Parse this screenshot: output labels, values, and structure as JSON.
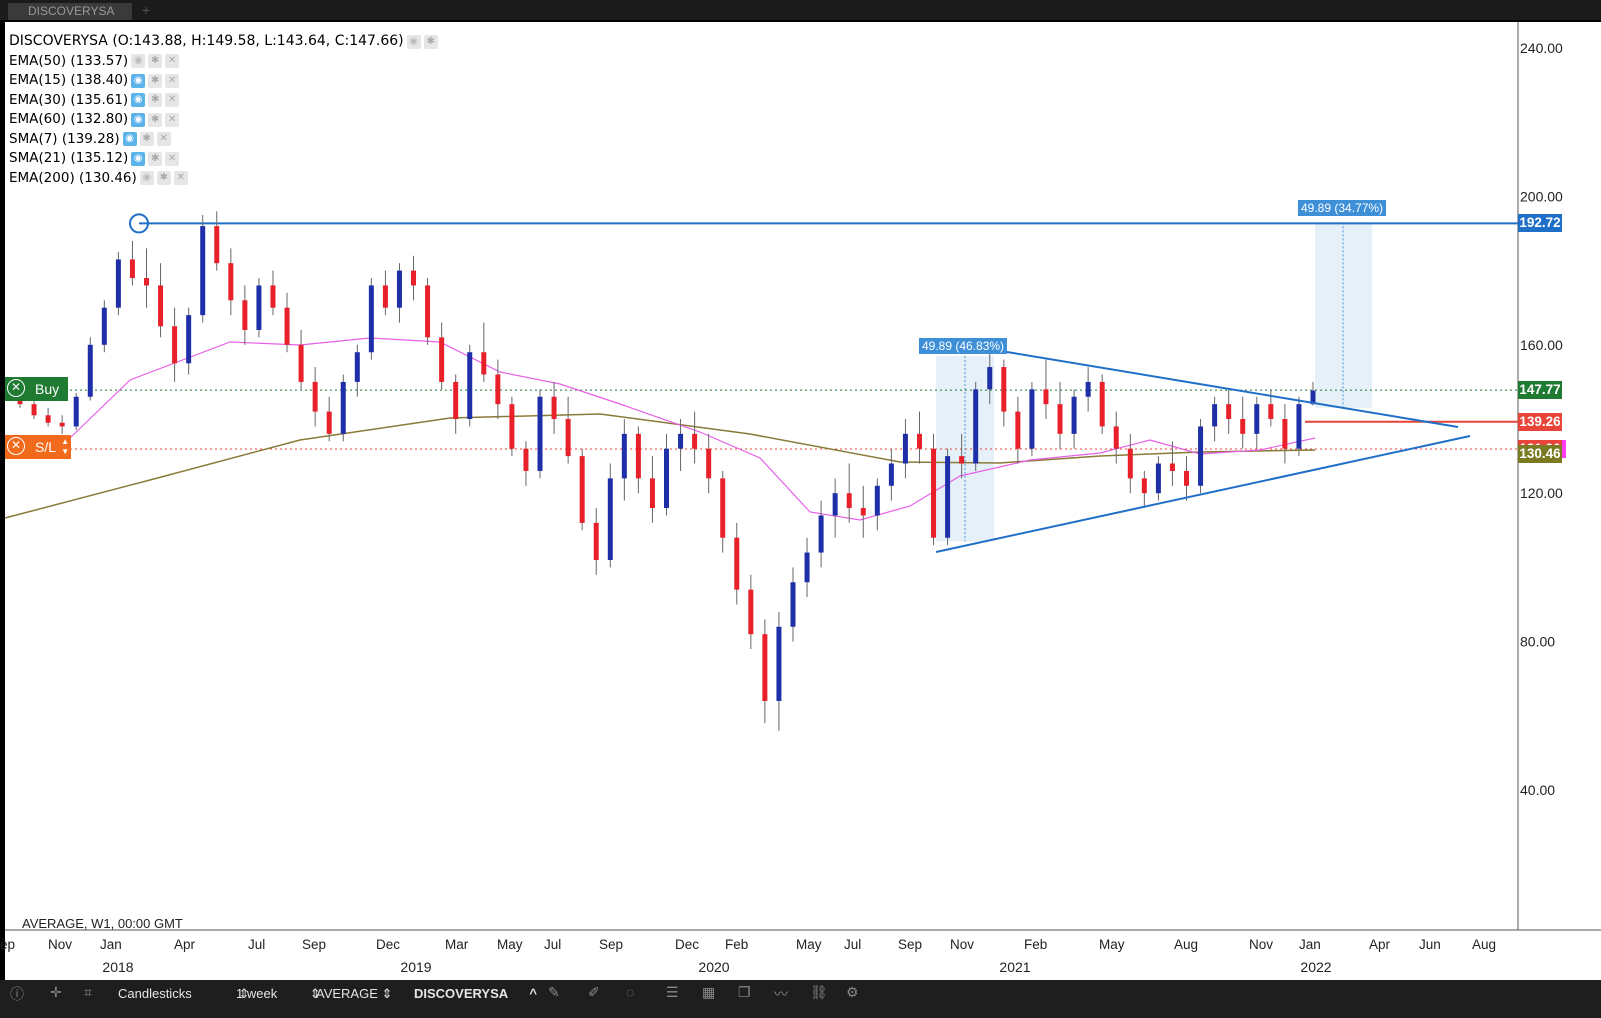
{
  "window": {
    "tab_title": "DISCOVERYSA"
  },
  "legend": {
    "main": "DISCOVERYSA (O:143.88, H:149.58, L:143.64, C:147.66)",
    "indicators": [
      {
        "label": "EMA(50) (133.57)",
        "eye_on": false
      },
      {
        "label": "EMA(15) (138.40)",
        "eye_on": true
      },
      {
        "label": "EMA(30) (135.61)",
        "eye_on": true
      },
      {
        "label": "EMA(60) (132.80)",
        "eye_on": true
      },
      {
        "label": "SMA(7) (139.28)",
        "eye_on": true
      },
      {
        "label": "SMA(21) (135.12)",
        "eye_on": true
      },
      {
        "label": "EMA(200) (130.46)",
        "eye_on": false
      }
    ]
  },
  "orders": {
    "buy_label": "Buy",
    "sl_label": "S/L"
  },
  "footer_note": "AVERAGE, W1, 00:00 GMT",
  "measurements": {
    "first": "49.89 (46.83%)",
    "second": "49.89 (34.77%)"
  },
  "price_tags": [
    {
      "value": "192.72",
      "price": 192.72,
      "color": "#1f6fc8"
    },
    {
      "value": "147.77",
      "price": 147.77,
      "color": "#1f7a32"
    },
    {
      "value": "139.26",
      "price": 139.26,
      "color": "#e8443a"
    },
    {
      "value": "131.90",
      "price": 131.9,
      "color": "#e8443a",
      "accent": "#ff3cf0"
    },
    {
      "value": "130.46",
      "price": 130.46,
      "color": "#7a7a22"
    }
  ],
  "chart_data": {
    "type": "candlestick",
    "y_axis": {
      "ticks": [
        "240.00",
        "200.00",
        "160.00",
        "120.00",
        "80.00",
        "40.00"
      ],
      "range": [
        0,
        245
      ],
      "side": "right"
    },
    "x_axis": {
      "month_ticks": [
        "ep",
        "Nov",
        "Jan",
        "Apr",
        "Jul",
        "Sep",
        "Dec",
        "Mar",
        "May",
        "Jul",
        "Sep",
        "Dec",
        "Feb",
        "May",
        "Jul",
        "Sep",
        "Nov",
        "Feb",
        "May",
        "Aug",
        "Nov",
        "Jan",
        "Apr",
        "Jun",
        "Aug"
      ],
      "year_ticks": [
        "2018",
        "2019",
        "2020",
        "2021",
        "2022"
      ]
    },
    "horizontal_lines": [
      {
        "price": 192.72,
        "color": "#1f6fc8",
        "style": "solid"
      },
      {
        "price": 147.77,
        "color": "#1f7a32",
        "style": "dotted"
      },
      {
        "price": 139.26,
        "color": "#e8443a",
        "style": "solid"
      },
      {
        "price": 131.9,
        "color": "#e8443a",
        "style": "dotted"
      }
    ],
    "series": [
      {
        "name": "SMA(21)",
        "color": "#e860e8"
      },
      {
        "name": "EMA(200)",
        "color": "#8a7a38"
      }
    ],
    "candles": [
      [
        145,
        148,
        143,
        144
      ],
      [
        144,
        146,
        140,
        141
      ],
      [
        141,
        143,
        138,
        139
      ],
      [
        139,
        141,
        136,
        138
      ],
      [
        138,
        147,
        137,
        146
      ],
      [
        146,
        162,
        145,
        160
      ],
      [
        160,
        172,
        158,
        170
      ],
      [
        170,
        185,
        168,
        183
      ],
      [
        183,
        188,
        176,
        178
      ],
      [
        178,
        186,
        170,
        176
      ],
      [
        176,
        182,
        162,
        165
      ],
      [
        165,
        170,
        150,
        155
      ],
      [
        155,
        170,
        152,
        168
      ],
      [
        168,
        195,
        166,
        192
      ],
      [
        192,
        196,
        180,
        182
      ],
      [
        182,
        186,
        168,
        172
      ],
      [
        172,
        176,
        160,
        164
      ],
      [
        164,
        178,
        162,
        176
      ],
      [
        176,
        180,
        168,
        170
      ],
      [
        170,
        174,
        158,
        160
      ],
      [
        160,
        164,
        148,
        150
      ],
      [
        150,
        154,
        138,
        142
      ],
      [
        142,
        146,
        134,
        136
      ],
      [
        136,
        152,
        134,
        150
      ],
      [
        150,
        160,
        146,
        158
      ],
      [
        158,
        178,
        156,
        176
      ],
      [
        176,
        180,
        168,
        170
      ],
      [
        170,
        182,
        166,
        180
      ],
      [
        180,
        184,
        172,
        176
      ],
      [
        176,
        178,
        160,
        162
      ],
      [
        162,
        166,
        148,
        150
      ],
      [
        150,
        152,
        136,
        140
      ],
      [
        140,
        160,
        138,
        158
      ],
      [
        158,
        166,
        150,
        152
      ],
      [
        152,
        156,
        140,
        144
      ],
      [
        144,
        146,
        130,
        132
      ],
      [
        132,
        134,
        122,
        126
      ],
      [
        126,
        148,
        124,
        146
      ],
      [
        146,
        150,
        136,
        140
      ],
      [
        140,
        146,
        128,
        130
      ],
      [
        130,
        132,
        110,
        112
      ],
      [
        112,
        116,
        98,
        102
      ],
      [
        102,
        128,
        100,
        124
      ],
      [
        124,
        140,
        118,
        136
      ],
      [
        136,
        138,
        120,
        124
      ],
      [
        124,
        130,
        112,
        116
      ],
      [
        116,
        136,
        114,
        132
      ],
      [
        132,
        140,
        126,
        136
      ],
      [
        136,
        142,
        128,
        132
      ],
      [
        132,
        136,
        120,
        124
      ],
      [
        124,
        126,
        104,
        108
      ],
      [
        108,
        112,
        90,
        94
      ],
      [
        94,
        98,
        78,
        82
      ],
      [
        82,
        86,
        58,
        64
      ],
      [
        64,
        88,
        56,
        84
      ],
      [
        84,
        100,
        80,
        96
      ],
      [
        96,
        108,
        92,
        104
      ],
      [
        104,
        118,
        100,
        114
      ],
      [
        114,
        124,
        108,
        120
      ],
      [
        120,
        128,
        112,
        116
      ],
      [
        116,
        122,
        108,
        114
      ],
      [
        114,
        124,
        110,
        122
      ],
      [
        122,
        132,
        118,
        128
      ],
      [
        128,
        140,
        124,
        136
      ],
      [
        136,
        142,
        128,
        132
      ],
      [
        132,
        136,
        106,
        108
      ],
      [
        108,
        132,
        106,
        130
      ],
      [
        130,
        136,
        124,
        128
      ],
      [
        128,
        150,
        126,
        148
      ],
      [
        148,
        158,
        144,
        154
      ],
      [
        154,
        156,
        138,
        142
      ],
      [
        142,
        146,
        128,
        132
      ],
      [
        132,
        150,
        130,
        148
      ],
      [
        148,
        156,
        140,
        144
      ],
      [
        144,
        150,
        132,
        136
      ],
      [
        136,
        148,
        132,
        146
      ],
      [
        146,
        154,
        142,
        150
      ],
      [
        150,
        152,
        136,
        138
      ],
      [
        138,
        142,
        128,
        132
      ],
      [
        132,
        136,
        120,
        124
      ],
      [
        124,
        126,
        116,
        120
      ],
      [
        120,
        130,
        118,
        128
      ],
      [
        128,
        134,
        122,
        126
      ],
      [
        126,
        130,
        118,
        122
      ],
      [
        122,
        140,
        120,
        138
      ],
      [
        138,
        146,
        134,
        144
      ],
      [
        144,
        148,
        136,
        140
      ],
      [
        140,
        146,
        132,
        136
      ],
      [
        136,
        146,
        132,
        144
      ],
      [
        144,
        148,
        138,
        140
      ],
      [
        140,
        144,
        128,
        132
      ],
      [
        132,
        146,
        130,
        144
      ],
      [
        144,
        150,
        143.64,
        147.66
      ]
    ]
  }
}
